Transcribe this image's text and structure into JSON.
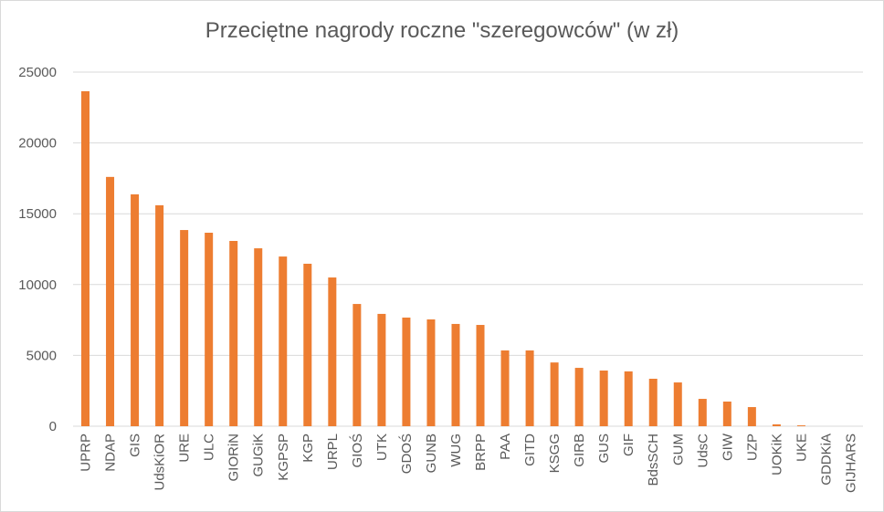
{
  "chart_data": {
    "type": "bar",
    "title": "Przeciętne nagrody roczne \"szeregowców\" (w zł)",
    "xlabel": "",
    "ylabel": "",
    "ylim": [
      0,
      25000
    ],
    "yticks": [
      0,
      5000,
      10000,
      15000,
      20000,
      25000
    ],
    "grid": true,
    "bar_color": "#ED7D31",
    "categories": [
      "UPRP",
      "NDAP",
      "GIS",
      "UdsKiOR",
      "URE",
      "ULC",
      "GIORiN",
      "GUGiK",
      "KGPSP",
      "KGP",
      "URPL",
      "GIOŚ",
      "UTK",
      "GDOŚ",
      "GUNB",
      "WUG",
      "BRPP",
      "PAA",
      "GITD",
      "KSGG",
      "GIRB",
      "GUS",
      "GIF",
      "BdsSCH",
      "GUM",
      "UdsC",
      "GIW",
      "UZP",
      "UOKiK",
      "UKE",
      "GDDKiA",
      "GIJHARS"
    ],
    "values": [
      23650,
      17600,
      16370,
      15600,
      13850,
      13660,
      13080,
      12560,
      11980,
      11470,
      10500,
      8630,
      7930,
      7670,
      7540,
      7220,
      7150,
      5350,
      5350,
      4500,
      4120,
      3930,
      3870,
      3350,
      3090,
      1930,
      1740,
      1350,
      130,
      60,
      0,
      0
    ]
  }
}
